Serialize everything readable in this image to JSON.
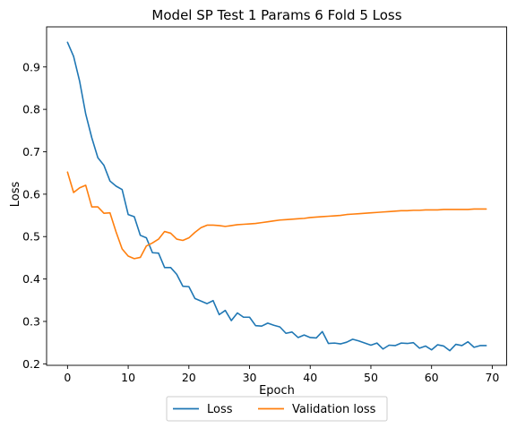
{
  "chart_data": {
    "type": "line",
    "title": "Model SP Test 1 Params 6 Fold 5 Loss",
    "xlabel": "Epoch",
    "ylabel": "Loss",
    "xlim": [
      -3.45,
      72.45
    ],
    "ylim": [
      0.1965,
      0.9945
    ],
    "xticks": [
      0,
      10,
      20,
      30,
      40,
      50,
      60,
      70
    ],
    "yticks": [
      0.2,
      0.3,
      0.4,
      0.5,
      0.6,
      0.7,
      0.8,
      0.9
    ],
    "grid": false,
    "legend_position": "bottom-center-outside",
    "series": [
      {
        "name": "Loss",
        "color": "#1f77b4",
        "values": [
          0.958,
          0.925,
          0.866,
          0.789,
          0.733,
          0.686,
          0.668,
          0.631,
          0.619,
          0.611,
          0.552,
          0.547,
          0.503,
          0.497,
          0.462,
          0.461,
          0.427,
          0.427,
          0.411,
          0.383,
          0.382,
          0.354,
          0.348,
          0.342,
          0.349,
          0.316,
          0.326,
          0.302,
          0.32,
          0.31,
          0.31,
          0.29,
          0.289,
          0.296,
          0.291,
          0.287,
          0.272,
          0.275,
          0.262,
          0.268,
          0.262,
          0.261,
          0.276,
          0.248,
          0.249,
          0.247,
          0.251,
          0.258,
          0.254,
          0.249,
          0.244,
          0.249,
          0.235,
          0.244,
          0.243,
          0.249,
          0.248,
          0.25,
          0.237,
          0.242,
          0.233,
          0.245,
          0.242,
          0.231,
          0.246,
          0.243,
          0.252,
          0.239,
          0.243,
          0.243
        ]
      },
      {
        "name": "Validation loss",
        "color": "#ff7f0e",
        "values": [
          0.652,
          0.604,
          0.615,
          0.621,
          0.57,
          0.57,
          0.555,
          0.556,
          0.511,
          0.471,
          0.454,
          0.448,
          0.451,
          0.478,
          0.485,
          0.494,
          0.512,
          0.508,
          0.494,
          0.491,
          0.497,
          0.51,
          0.521,
          0.527,
          0.527,
          0.526,
          0.524,
          0.526,
          0.528,
          0.529,
          0.53,
          0.531,
          0.533,
          0.535,
          0.537,
          0.539,
          0.54,
          0.541,
          0.542,
          0.543,
          0.545,
          0.546,
          0.547,
          0.548,
          0.549,
          0.55,
          0.552,
          0.553,
          0.554,
          0.555,
          0.556,
          0.557,
          0.558,
          0.559,
          0.56,
          0.561,
          0.561,
          0.562,
          0.562,
          0.563,
          0.563,
          0.563,
          0.564,
          0.564,
          0.564,
          0.564,
          0.564,
          0.565,
          0.565,
          0.565
        ]
      }
    ]
  }
}
